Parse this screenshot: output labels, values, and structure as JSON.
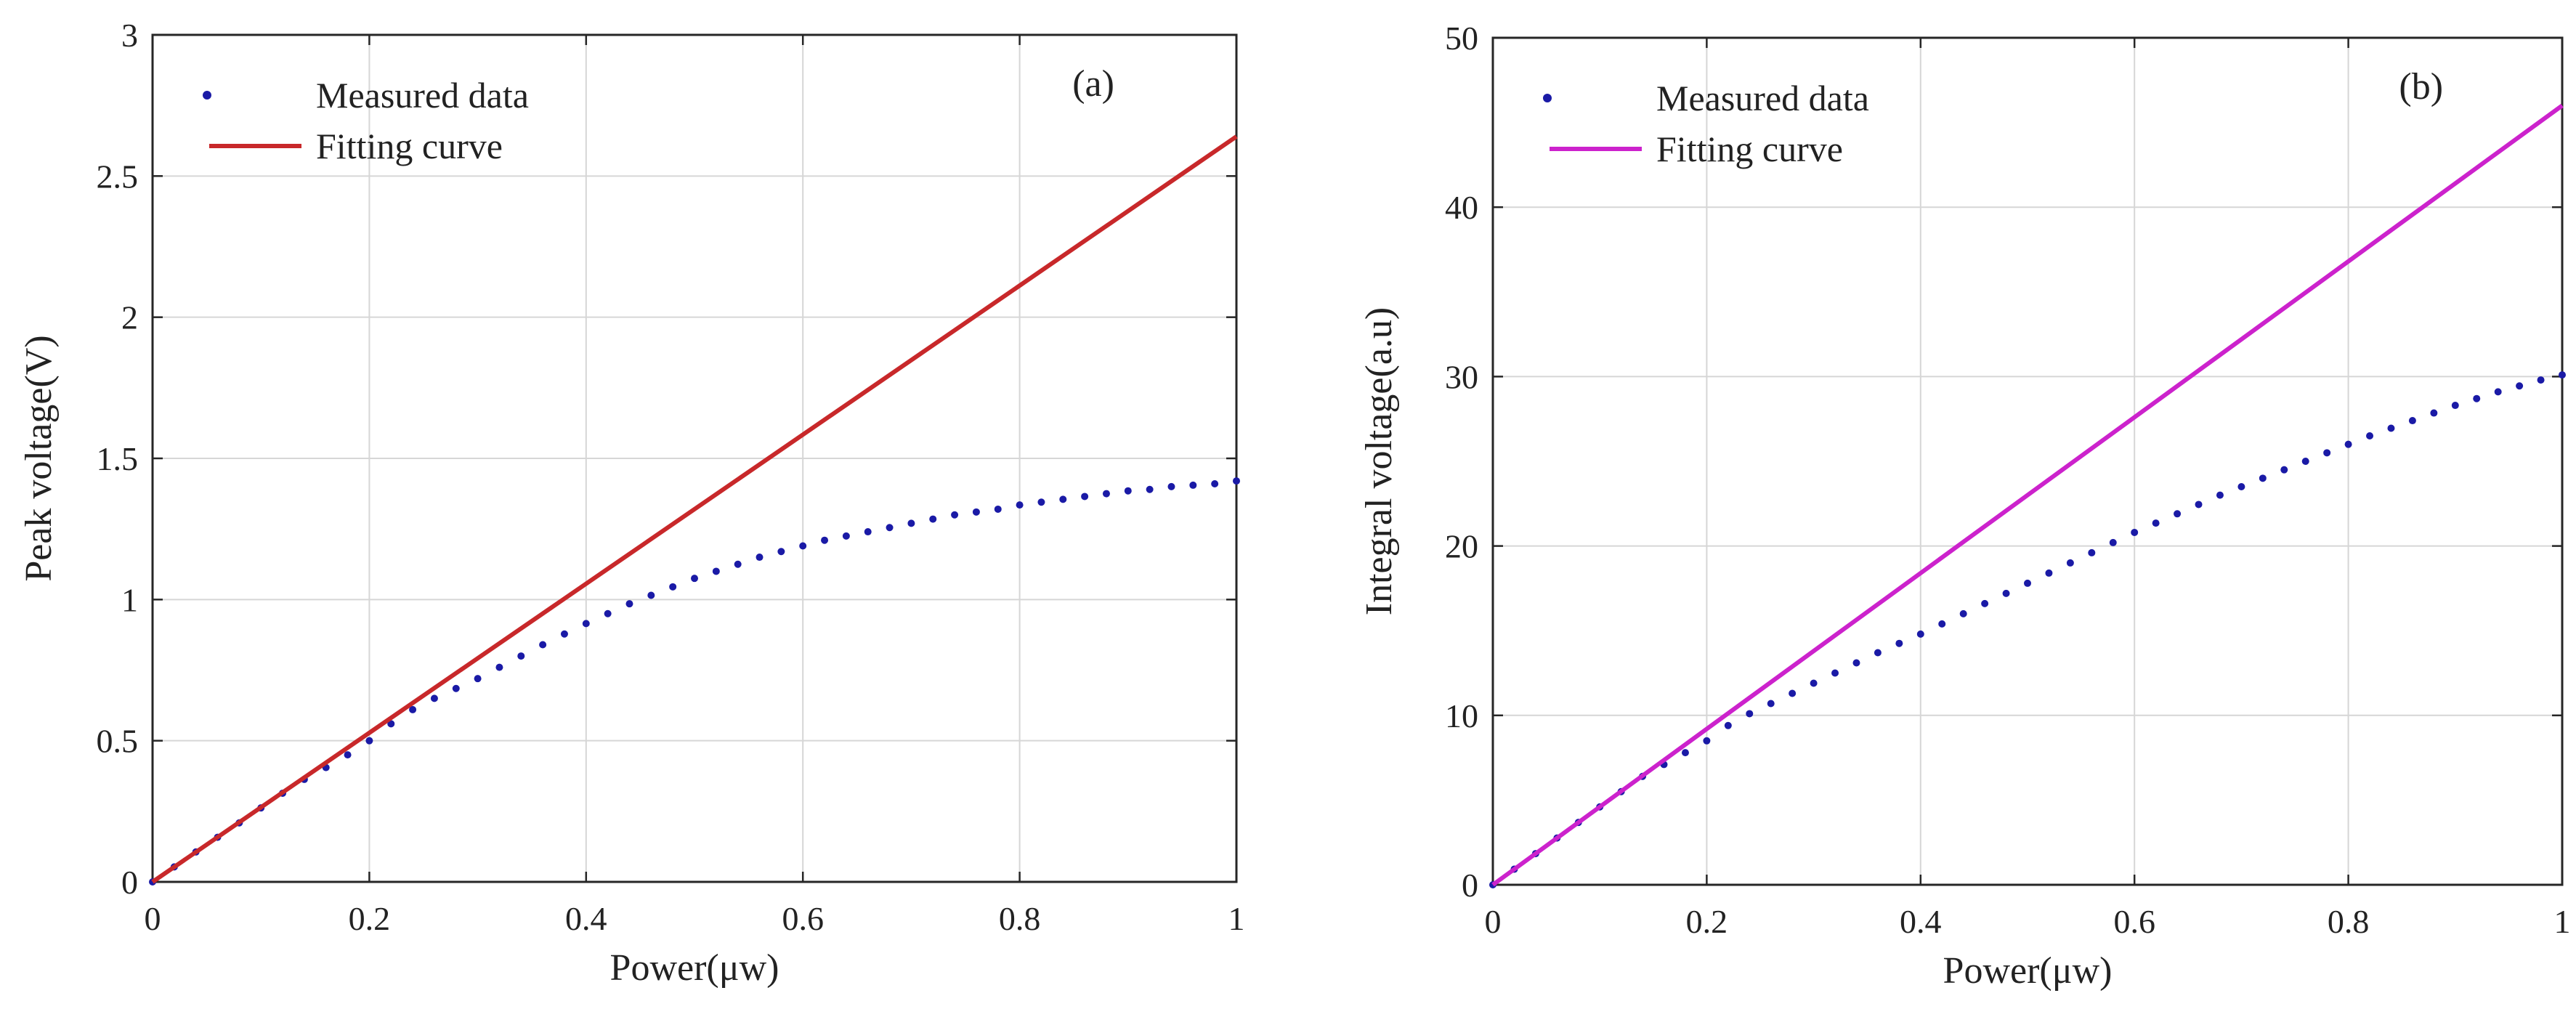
{
  "chart_data": [
    {
      "type": "scatter",
      "panel_label": "(a)",
      "xlabel": "Power(μw)",
      "ylabel": "Peak voltage(V)",
      "xlim": [
        0,
        1
      ],
      "ylim": [
        0,
        3
      ],
      "xticks": [
        0,
        0.2,
        0.4,
        0.6,
        0.8,
        1
      ],
      "xtick_labels": [
        "0",
        "0.2",
        "0.4",
        "0.6",
        "0.8",
        "1"
      ],
      "yticks": [
        0,
        0.5,
        1,
        1.5,
        2,
        2.5,
        3
      ],
      "ytick_labels": [
        "0",
        "0.5",
        "1",
        "1.5",
        "2",
        "2.5",
        "3"
      ],
      "grid": true,
      "legend_position": "top-left",
      "series": [
        {
          "name": "Measured data",
          "kind": "points",
          "color": "#1a1aa6",
          "x": [
            0,
            0.02,
            0.04,
            0.06,
            0.08,
            0.1,
            0.12,
            0.14,
            0.16,
            0.18,
            0.2,
            0.22,
            0.24,
            0.26,
            0.28,
            0.3,
            0.32,
            0.34,
            0.36,
            0.38,
            0.4,
            0.42,
            0.44,
            0.46,
            0.48,
            0.5,
            0.52,
            0.54,
            0.56,
            0.58,
            0.6,
            0.62,
            0.64,
            0.66,
            0.68,
            0.7,
            0.72,
            0.74,
            0.76,
            0.78,
            0.8,
            0.82,
            0.84,
            0.86,
            0.88,
            0.9,
            0.92,
            0.94,
            0.96,
            0.98,
            1.0
          ],
          "y": [
            0,
            0.053,
            0.106,
            0.158,
            0.209,
            0.262,
            0.314,
            0.363,
            0.405,
            0.45,
            0.5,
            0.56,
            0.61,
            0.65,
            0.685,
            0.72,
            0.76,
            0.8,
            0.84,
            0.878,
            0.915,
            0.95,
            0.985,
            1.015,
            1.045,
            1.075,
            1.1,
            1.125,
            1.15,
            1.17,
            1.19,
            1.21,
            1.225,
            1.24,
            1.255,
            1.27,
            1.285,
            1.3,
            1.31,
            1.32,
            1.335,
            1.345,
            1.355,
            1.365,
            1.375,
            1.385,
            1.39,
            1.4,
            1.405,
            1.41,
            1.42
          ]
        },
        {
          "name": "Fitting curve",
          "kind": "line",
          "color": "#c8282a",
          "x": [
            0,
            1
          ],
          "y": [
            0,
            2.64
          ]
        }
      ]
    },
    {
      "type": "scatter",
      "panel_label": "(b)",
      "xlabel": "Power(μw)",
      "ylabel": "Integral voltage(a.u)",
      "xlim": [
        0,
        1
      ],
      "ylim": [
        0,
        50
      ],
      "xticks": [
        0,
        0.2,
        0.4,
        0.6,
        0.8,
        1
      ],
      "xtick_labels": [
        "0",
        "0.2",
        "0.4",
        "0.6",
        "0.8",
        "1"
      ],
      "yticks": [
        0,
        10,
        20,
        30,
        40,
        50
      ],
      "ytick_labels": [
        "0",
        "10",
        "20",
        "30",
        "40",
        "50"
      ],
      "grid": true,
      "legend_position": "top-left",
      "series": [
        {
          "name": "Measured data",
          "kind": "points",
          "color": "#1a1aa6",
          "x": [
            0,
            0.02,
            0.04,
            0.06,
            0.08,
            0.1,
            0.12,
            0.14,
            0.16,
            0.18,
            0.2,
            0.22,
            0.24,
            0.26,
            0.28,
            0.3,
            0.32,
            0.34,
            0.36,
            0.38,
            0.4,
            0.42,
            0.44,
            0.46,
            0.48,
            0.5,
            0.52,
            0.54,
            0.56,
            0.58,
            0.6,
            0.62,
            0.64,
            0.66,
            0.68,
            0.7,
            0.72,
            0.74,
            0.76,
            0.78,
            0.8,
            0.82,
            0.84,
            0.86,
            0.88,
            0.9,
            0.92,
            0.94,
            0.96,
            0.98,
            1.0
          ],
          "y": [
            0,
            0.92,
            1.84,
            2.76,
            3.68,
            4.6,
            5.5,
            6.4,
            7.1,
            7.8,
            8.5,
            9.4,
            10.1,
            10.7,
            11.3,
            11.9,
            12.5,
            13.1,
            13.7,
            14.25,
            14.8,
            15.4,
            16.0,
            16.6,
            17.2,
            17.8,
            18.4,
            19.0,
            19.6,
            20.2,
            20.8,
            21.35,
            21.9,
            22.45,
            23.0,
            23.5,
            24.0,
            24.5,
            25.0,
            25.5,
            26.0,
            26.5,
            26.95,
            27.4,
            27.85,
            28.3,
            28.7,
            29.1,
            29.45,
            29.8,
            30.1
          ]
        },
        {
          "name": "Fitting curve",
          "kind": "line",
          "color": "#cc22cc",
          "x": [
            0,
            1
          ],
          "y": [
            0,
            46.0
          ]
        }
      ]
    }
  ]
}
